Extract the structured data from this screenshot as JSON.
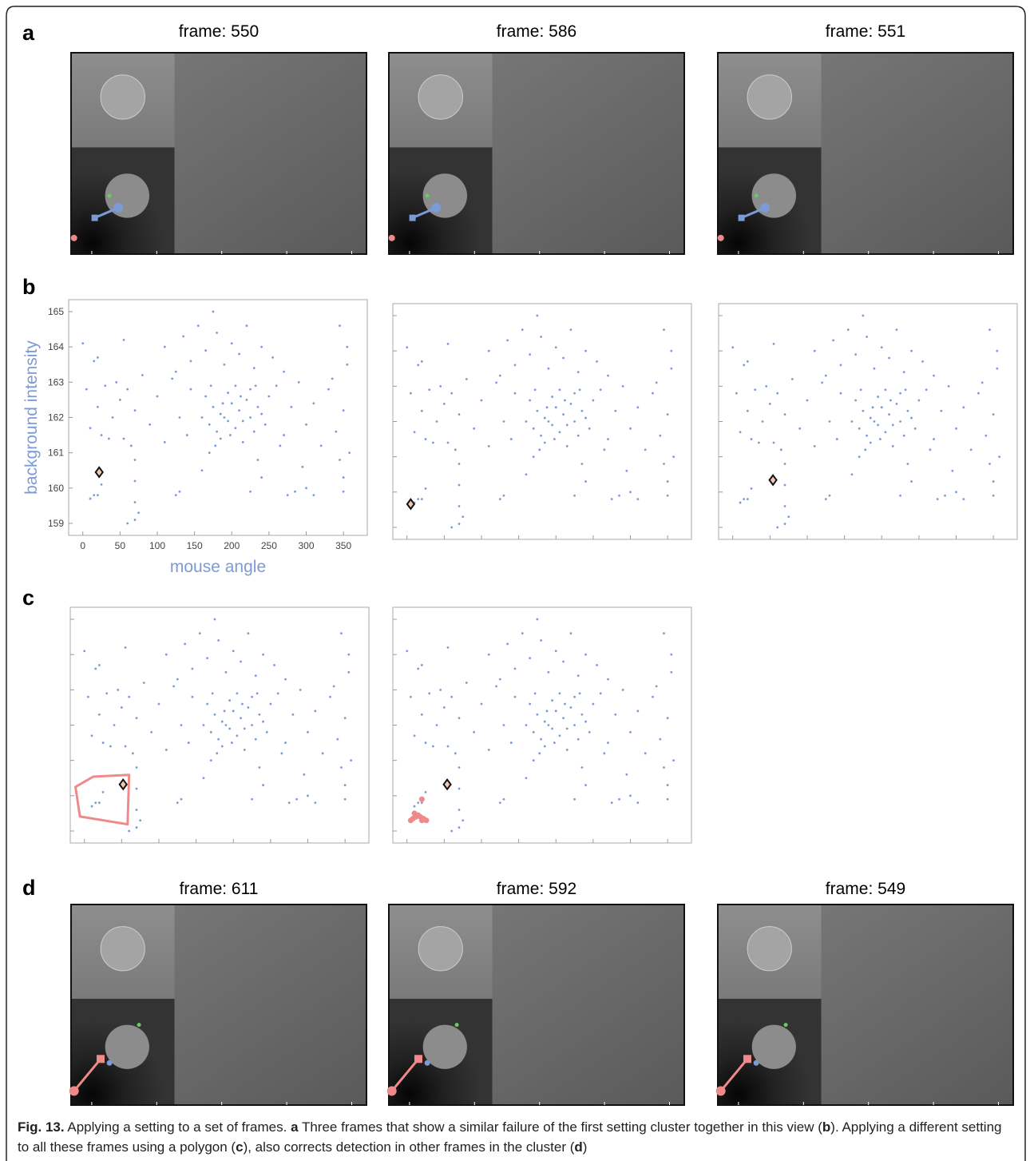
{
  "panel_labels": [
    "a",
    "b",
    "c",
    "d"
  ],
  "frames_a": [
    "frame: 550",
    "frame: 586",
    "frame: 551"
  ],
  "frames_d": [
    "frame: 611",
    "frame: 592",
    "frame: 549"
  ],
  "scatter": {
    "type": "scatter",
    "xlabel": "mouse angle",
    "ylabel": "background intensity",
    "xlim": [
      -19,
      382
    ],
    "ylim": [
      158.66,
      165.34
    ],
    "xticks": [
      0,
      50,
      100,
      150,
      200,
      250,
      300,
      350
    ],
    "yticks": [
      159,
      160,
      161,
      162,
      163,
      164,
      165
    ],
    "color": "#7b9bd6",
    "x": [
      160,
      170,
      175,
      180,
      185,
      190,
      195,
      200,
      205,
      210,
      215,
      220,
      225,
      230,
      235,
      240,
      245,
      250,
      165,
      185,
      195,
      205,
      215,
      225,
      178,
      198,
      212,
      188,
      172,
      232,
      5,
      10,
      15,
      20,
      25,
      30,
      35,
      40,
      45,
      50,
      55,
      60,
      65,
      70,
      80,
      90,
      100,
      110,
      120,
      130,
      140,
      145,
      0,
      20,
      55,
      260,
      270,
      280,
      290,
      300,
      310,
      320,
      330,
      340,
      350,
      355,
      345,
      355,
      358,
      335,
      265,
      110,
      125,
      135,
      145,
      155,
      165,
      175,
      180,
      190,
      200,
      210,
      220,
      230,
      240,
      255,
      270,
      70,
      70,
      70,
      70,
      75,
      60,
      25,
      20,
      15,
      10,
      125,
      130,
      160,
      170,
      235,
      240,
      225,
      275,
      285,
      295,
      300,
      310,
      350,
      345,
      350
    ],
    "y": [
      162.0,
      161.8,
      162.3,
      161.6,
      162.1,
      162.0,
      161.9,
      162.4,
      161.7,
      162.2,
      161.9,
      162.5,
      162.0,
      161.6,
      162.3,
      162.1,
      161.8,
      162.6,
      162.6,
      161.4,
      162.7,
      162.9,
      161.3,
      162.8,
      161.2,
      161.5,
      162.6,
      162.4,
      162.9,
      162.9,
      162.8,
      161.7,
      163.6,
      162.3,
      161.5,
      162.9,
      161.4,
      162.0,
      163.0,
      162.5,
      161.4,
      162.8,
      161.2,
      162.2,
      163.2,
      161.8,
      162.6,
      161.3,
      163.1,
      162.0,
      161.5,
      162.8,
      164.1,
      163.7,
      164.2,
      162.9,
      161.5,
      162.3,
      163.0,
      161.8,
      162.4,
      161.2,
      162.8,
      161.6,
      162.2,
      163.5,
      164.6,
      164.0,
      161.0,
      163.1,
      161.2,
      164.0,
      163.3,
      164.3,
      163.6,
      164.6,
      163.9,
      165.0,
      164.4,
      163.5,
      164.1,
      163.8,
      164.6,
      163.4,
      164.0,
      163.7,
      163.3,
      160.8,
      160.2,
      159.6,
      159.1,
      159.3,
      159.0,
      160.1,
      159.8,
      159.8,
      159.7,
      159.8,
      159.9,
      160.5,
      161.0,
      160.8,
      160.3,
      159.9,
      159.8,
      159.9,
      160.6,
      160.0,
      159.8,
      160.3,
      160.8,
      159.9
    ],
    "highlights": [
      {
        "x": 22,
        "y": 160.45
      },
      {
        "x": 5,
        "y": 159.66
      },
      {
        "x": 54,
        "y": 160.34
      },
      {
        "x": 52,
        "y": 160.32
      },
      {
        "x": 54,
        "y": 160.32
      }
    ],
    "polygon": {
      "color": "#f08a8a",
      "x": [
        -12,
        12,
        60,
        58,
        -6
      ],
      "y": [
        160.25,
        160.54,
        160.59,
        159.19,
        159.41
      ]
    },
    "selected": {
      "color": "#f08a8a",
      "x": [
        5,
        8,
        12,
        15,
        18,
        20,
        22,
        26,
        10,
        20
      ],
      "y": [
        159.3,
        159.35,
        159.4,
        159.45,
        159.4,
        159.3,
        159.35,
        159.3,
        159.5,
        159.9
      ]
    }
  },
  "caption": {
    "label": "Fig. 13.",
    "segments": [
      " Applying a setting to a set of frames. ",
      "a",
      " Three frames that show a similar failure of the first setting cluster together in this view (",
      "b",
      "). Applying a different setting to all these frames using a polygon (",
      "c",
      "), also corrects detection in other frames in the cluster (",
      "d",
      ")"
    ]
  }
}
